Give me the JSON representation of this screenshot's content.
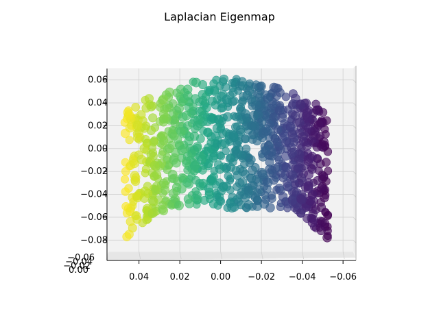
{
  "chart_data": {
    "type": "scatter",
    "projection": "3d",
    "title": "Laplacian Eigenmap",
    "xlabel": "",
    "ylabel": "",
    "zlabel": "",
    "x_tick_labels": [
      "0.04",
      "0.02",
      "0.00",
      "−0.02",
      "−0.04",
      "−0.06"
    ],
    "z_tick_labels": [
      "0.06",
      "0.04",
      "0.02",
      "0.00",
      "−0.02",
      "−0.04",
      "−0.06",
      "−0.08"
    ],
    "y_tick_labels": [
      "−0.06",
      "−0.04",
      "−0.02",
      "0.00"
    ],
    "xlim": [
      0.055,
      -0.065
    ],
    "zlim": [
      -0.09,
      0.07
    ],
    "grid": true,
    "colormap": "viridis",
    "color_range": [
      "#fde725",
      "#440154"
    ],
    "approx_point_count": 1000,
    "x_range_of_data": [
      0.047,
      -0.053
    ],
    "z_range_of_data": [
      -0.087,
      0.063
    ]
  }
}
